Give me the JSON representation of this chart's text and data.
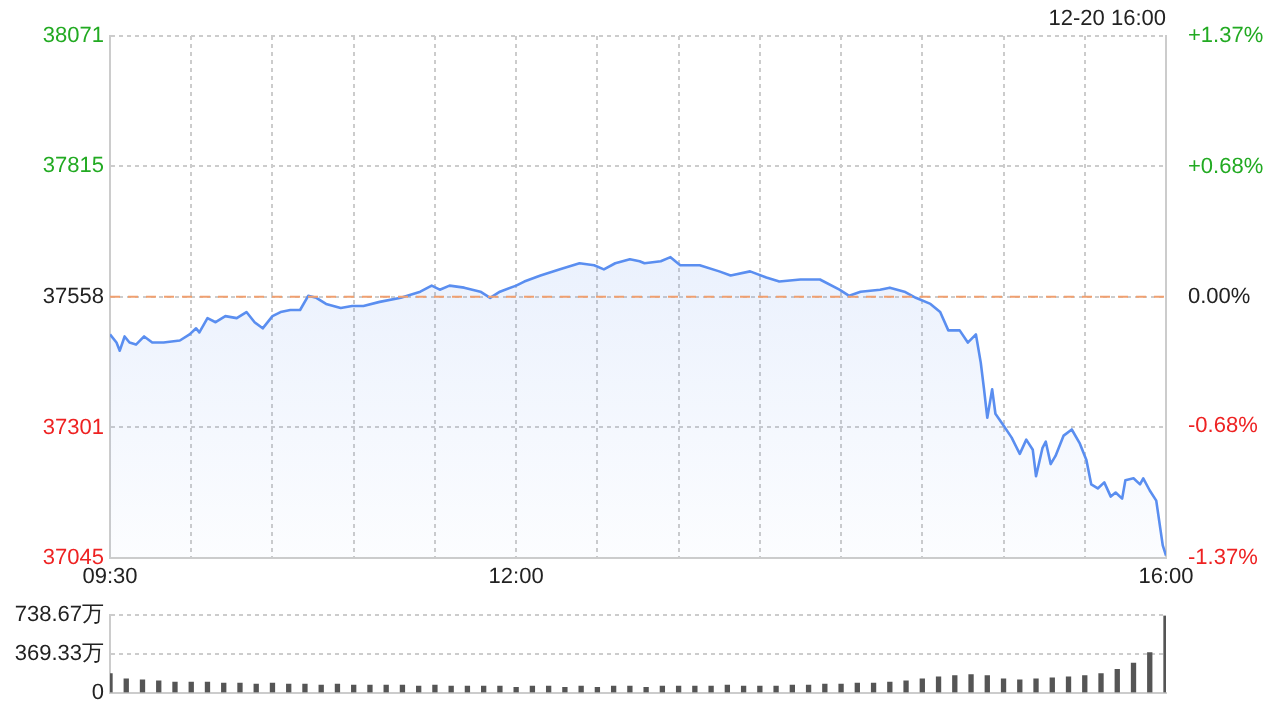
{
  "chart_data": [
    {
      "type": "area",
      "color": "#5a8ef0",
      "annotations": [
        "12-20 16:00"
      ],
      "x": [
        9.5,
        9.54,
        9.56,
        9.59,
        9.62,
        9.66,
        9.71,
        9.76,
        9.83,
        9.93,
        9.99,
        10.03,
        10.05,
        10.1,
        10.15,
        10.21,
        10.28,
        10.34,
        10.39,
        10.44,
        10.5,
        10.55,
        10.61,
        10.67,
        10.72,
        10.77,
        10.83,
        10.92,
        10.99,
        11.06,
        11.16,
        11.29,
        11.41,
        11.48,
        11.53,
        11.59,
        11.68,
        11.78,
        11.84,
        11.9,
        12.0,
        12.05,
        12.15,
        12.27,
        12.39,
        12.48,
        12.54,
        12.61,
        12.7,
        12.76,
        12.79,
        12.89,
        12.95,
        13.01,
        13.13,
        13.25,
        13.32,
        13.44,
        13.54,
        13.62,
        13.75,
        13.87,
        13.99,
        14.05,
        14.12,
        14.24,
        14.3,
        14.39,
        14.46,
        14.55,
        14.61,
        14.66,
        14.73,
        14.78,
        14.83,
        14.86,
        14.88,
        14.9,
        14.93,
        14.95,
        15.0,
        15.05,
        15.1,
        15.14,
        15.18,
        15.2,
        15.24,
        15.26,
        15.29,
        15.32,
        15.37,
        15.42,
        15.47,
        15.51,
        15.54,
        15.58,
        15.62,
        15.66,
        15.69,
        15.73,
        15.75,
        15.8,
        15.84,
        15.86,
        15.9,
        15.94,
        15.98,
        16.0
      ],
      "values": [
        37484,
        37468,
        37452,
        37480,
        37468,
        37464,
        37480,
        37468,
        37468,
        37472,
        37484,
        37496,
        37488,
        37516,
        37508,
        37520,
        37516,
        37528,
        37508,
        37496,
        37520,
        37528,
        37532,
        37532,
        37560,
        37556,
        37544,
        37536,
        37540,
        37540,
        37548,
        37556,
        37568,
        37580,
        37572,
        37580,
        37576,
        37568,
        37556,
        37568,
        37580,
        37588,
        37600,
        37612,
        37624,
        37620,
        37612,
        37624,
        37632,
        37628,
        37624,
        37628,
        37636,
        37620,
        37620,
        37608,
        37600,
        37608,
        37596,
        37588,
        37592,
        37592,
        37572,
        37560,
        37568,
        37572,
        37576,
        37568,
        37556,
        37544,
        37528,
        37492,
        37492,
        37468,
        37484,
        37428,
        37376,
        37320,
        37376,
        37328,
        37305,
        37281,
        37249,
        37277,
        37257,
        37205,
        37261,
        37273,
        37229,
        37245,
        37285,
        37297,
        37269,
        37237,
        37189,
        37181,
        37193,
        37165,
        37173,
        37161,
        37197,
        37201,
        37189,
        37201,
        37177,
        37157,
        37069,
        37049
      ],
      "xlim": [
        9.5,
        16
      ],
      "xticks": [
        {
          "value": 9.5,
          "label": "09:30"
        },
        {
          "value": 10,
          "label": null
        },
        {
          "value": 10.5,
          "label": null
        },
        {
          "value": 11,
          "label": null
        },
        {
          "value": 11.5,
          "label": null
        },
        {
          "value": 12,
          "label": "12:00"
        },
        {
          "value": 12.5,
          "label": null
        },
        {
          "value": 13,
          "label": null
        },
        {
          "value": 13.5,
          "label": null
        },
        {
          "value": 14,
          "label": null
        },
        {
          "value": 14.5,
          "label": null
        },
        {
          "value": 15,
          "label": null
        },
        {
          "value": 15.5,
          "label": null
        },
        {
          "value": 16,
          "label": "16:00"
        }
      ],
      "ylim": [
        37045,
        38071
      ],
      "yticks": [
        37045,
        37301,
        37558,
        37815,
        38071
      ],
      "y2lim": [
        -1.37,
        1.37
      ],
      "y2ticks": [
        {
          "value": -1.37,
          "label": "-1.37%"
        },
        {
          "value": -0.68,
          "label": "-0.68%"
        },
        {
          "value": 0,
          "label": "0.00%"
        },
        {
          "value": 0.68,
          "label": "+0.68%"
        },
        {
          "value": 1.37,
          "label": "+1.37%"
        }
      ],
      "ref_lines": [
        {
          "axis": "y",
          "value": 37558,
          "color": "#f0a070",
          "line_style": "dashed"
        }
      ],
      "grid": true
    },
    {
      "type": "bar",
      "color": "#555555",
      "x": [
        9.5,
        9.6,
        9.7,
        9.8,
        9.9,
        10.0,
        10.1,
        10.2,
        10.3,
        10.4,
        10.5,
        10.6,
        10.7,
        10.8,
        10.9,
        11.0,
        11.1,
        11.2,
        11.3,
        11.4,
        11.5,
        11.6,
        11.7,
        11.8,
        11.9,
        12.0,
        12.1,
        12.2,
        12.3,
        12.4,
        12.5,
        12.6,
        12.7,
        12.8,
        12.9,
        13.0,
        13.1,
        13.2,
        13.3,
        13.4,
        13.5,
        13.6,
        13.7,
        13.8,
        13.9,
        14.0,
        14.1,
        14.2,
        14.3,
        14.4,
        14.5,
        14.6,
        14.7,
        14.8,
        14.9,
        15.0,
        15.1,
        15.2,
        15.3,
        15.4,
        15.5,
        15.6,
        15.7,
        15.8,
        15.9,
        16.0
      ],
      "values": [
        180,
        130,
        120,
        110,
        100,
        100,
        100,
        90,
        90,
        80,
        90,
        80,
        80,
        70,
        80,
        70,
        70,
        70,
        70,
        60,
        70,
        60,
        60,
        60,
        60,
        50,
        60,
        60,
        50,
        60,
        50,
        60,
        60,
        50,
        60,
        60,
        60,
        60,
        70,
        60,
        60,
        60,
        70,
        70,
        80,
        80,
        90,
        90,
        100,
        110,
        130,
        150,
        160,
        170,
        160,
        130,
        120,
        130,
        140,
        150,
        160,
        180,
        220,
        280,
        380,
        730
      ],
      "xlim": [
        9.5,
        16
      ],
      "ylim": [
        0,
        738.67
      ],
      "yticks": [
        0,
        {
          "value": 369.33,
          "label": "369.33万"
        },
        {
          "value": 738.67,
          "label": "738.67万"
        }
      ],
      "grid": "y",
      "tick_labels": "y"
    }
  ]
}
